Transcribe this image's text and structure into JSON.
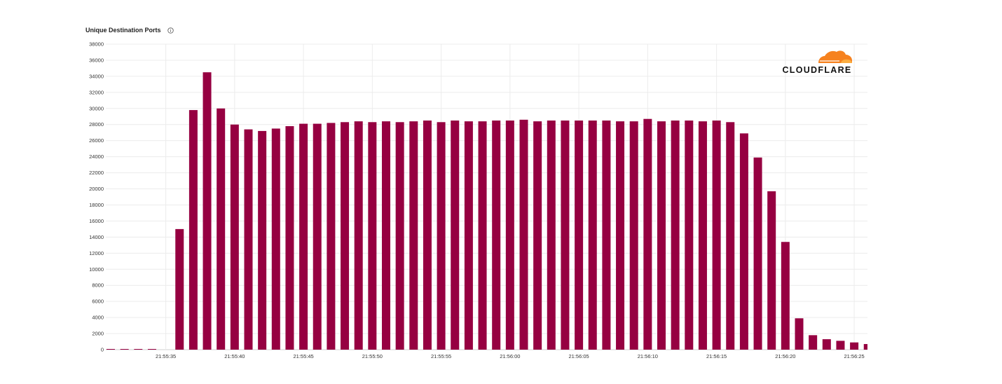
{
  "chart_data": {
    "type": "bar",
    "title": "Unique Destination Ports",
    "xlabel": "",
    "ylabel": "",
    "ylim": [
      0,
      38000
    ],
    "yticks": [
      0,
      2000,
      4000,
      6000,
      8000,
      10000,
      12000,
      14000,
      16000,
      18000,
      20000,
      22000,
      24000,
      26000,
      28000,
      30000,
      32000,
      34000,
      36000,
      38000
    ],
    "x_tick_labels": [
      "21:55:35",
      "21:55:40",
      "21:55:45",
      "21:55:50",
      "21:55:55",
      "21:56:00",
      "21:56:05",
      "21:56:10",
      "21:56:15",
      "21:56:20",
      "21:56:25"
    ],
    "grid": true,
    "color": "#960041",
    "categories": [
      "21:55:31",
      "21:55:32",
      "21:55:33",
      "21:55:34",
      "21:55:35",
      "21:55:36",
      "21:55:37",
      "21:55:38",
      "21:55:39",
      "21:55:40",
      "21:55:41",
      "21:55:42",
      "21:55:43",
      "21:55:44",
      "21:55:45",
      "21:55:46",
      "21:55:47",
      "21:55:48",
      "21:55:49",
      "21:55:50",
      "21:55:51",
      "21:55:52",
      "21:55:53",
      "21:55:54",
      "21:55:55",
      "21:55:56",
      "21:55:57",
      "21:55:58",
      "21:55:59",
      "21:56:00",
      "21:56:01",
      "21:56:02",
      "21:56:03",
      "21:56:04",
      "21:56:05",
      "21:56:06",
      "21:56:07",
      "21:56:08",
      "21:56:09",
      "21:56:10",
      "21:56:11",
      "21:56:12",
      "21:56:13",
      "21:56:14",
      "21:56:15",
      "21:56:16",
      "21:56:17",
      "21:56:18",
      "21:56:19",
      "21:56:20",
      "21:56:21",
      "21:56:22",
      "21:56:23",
      "21:56:24",
      "21:56:25",
      "21:56:26"
    ],
    "values": [
      5,
      5,
      5,
      5,
      0,
      15000,
      29800,
      34500,
      30000,
      28000,
      27400,
      27200,
      27500,
      27800,
      28100,
      28100,
      28200,
      28300,
      28400,
      28300,
      28400,
      28300,
      28400,
      28500,
      28300,
      28500,
      28400,
      28400,
      28500,
      28500,
      28600,
      28400,
      28500,
      28500,
      28500,
      28500,
      28500,
      28400,
      28400,
      28700,
      28400,
      28500,
      28500,
      28400,
      28500,
      28300,
      26900,
      23900,
      19700,
      13400,
      3900,
      1800,
      1300,
      1100,
      900,
      700
    ]
  },
  "logo": {
    "text": "CLOUDFLARE",
    "color": "#f6821f"
  },
  "icons": {
    "info": "info-icon"
  }
}
